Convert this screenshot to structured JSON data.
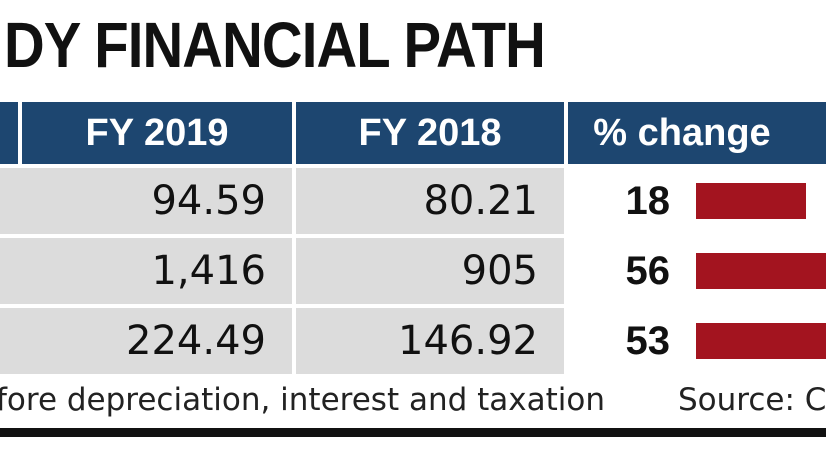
{
  "chart_data": {
    "type": "table",
    "title": "DY FINANCIAL PATH",
    "columns": [
      "FY 2019",
      "FY 2018",
      "% change"
    ],
    "rows": [
      {
        "fy2019": "94.59",
        "fy2018": "80.21",
        "change": 18
      },
      {
        "fy2019": "1,416",
        "fy2018": "905",
        "change": 56
      },
      {
        "fy2019": "224.49",
        "fy2018": "146.92",
        "change": 53
      }
    ],
    "bar_color": "#a3141f",
    "header_color": "#1d4670",
    "footnote": "fore depreciation, interest and taxation",
    "source": "Source: Co"
  }
}
